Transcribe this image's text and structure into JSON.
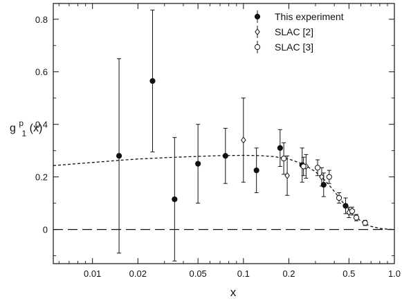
{
  "chart_data": {
    "type": "scatter",
    "xscale": "log",
    "xlim": [
      0.0055,
      1.0
    ],
    "ylim": [
      -0.13,
      0.86
    ],
    "xlabel": "x",
    "ylabel": {
      "base": "g",
      "sup": "p",
      "sub": "1",
      "arg": "(x)"
    },
    "xticks": [
      {
        "v": 0.01,
        "label": "0.01"
      },
      {
        "v": 0.02,
        "label": "0.02"
      },
      {
        "v": 0.05,
        "label": "0.05"
      },
      {
        "v": 0.1,
        "label": "0.1"
      },
      {
        "v": 0.2,
        "label": "0.2"
      },
      {
        "v": 0.5,
        "label": "0.5"
      },
      {
        "v": 1.0,
        "label": "1.0"
      }
    ],
    "yticks": [
      {
        "v": 0,
        "label": "0"
      },
      {
        "v": 0.2,
        "label": "0.2"
      },
      {
        "v": 0.4,
        "label": "0.4"
      },
      {
        "v": 0.6,
        "label": "0.6"
      },
      {
        "v": 0.8,
        "label": "0.8"
      }
    ],
    "grid": false,
    "legend_position": "top-right",
    "series": [
      {
        "name": "This experiment",
        "marker": "filled-circle",
        "points": [
          {
            "x": 0.015,
            "y": 0.28,
            "err": 0.37
          },
          {
            "x": 0.025,
            "y": 0.565,
            "err": 0.27
          },
          {
            "x": 0.035,
            "y": 0.115,
            "err": 0.235
          },
          {
            "x": 0.05,
            "y": 0.25,
            "err": 0.15
          },
          {
            "x": 0.076,
            "y": 0.28,
            "err": 0.105
          },
          {
            "x": 0.122,
            "y": 0.225,
            "err": 0.085
          },
          {
            "x": 0.175,
            "y": 0.31,
            "err": 0.07
          },
          {
            "x": 0.245,
            "y": 0.245,
            "err": 0.065
          },
          {
            "x": 0.34,
            "y": 0.17,
            "err": 0.045
          },
          {
            "x": 0.475,
            "y": 0.09,
            "err": 0.03
          }
        ]
      },
      {
        "name": "SLAC [2]",
        "marker": "open-diamond",
        "points": [
          {
            "x": 0.1,
            "y": 0.34,
            "err": 0.16
          },
          {
            "x": 0.195,
            "y": 0.205,
            "err": 0.075
          },
          {
            "x": 0.26,
            "y": 0.24,
            "err": 0.045
          },
          {
            "x": 0.33,
            "y": 0.2,
            "err": 0.035
          },
          {
            "x": 0.5,
            "y": 0.065,
            "err": 0.02
          }
        ]
      },
      {
        "name": "SLAC [3]",
        "marker": "open-circle",
        "points": [
          {
            "x": 0.185,
            "y": 0.27,
            "err": 0.06
          },
          {
            "x": 0.25,
            "y": 0.24,
            "err": 0.035
          },
          {
            "x": 0.31,
            "y": 0.235,
            "err": 0.03
          },
          {
            "x": 0.37,
            "y": 0.2,
            "err": 0.025
          },
          {
            "x": 0.43,
            "y": 0.12,
            "err": 0.02
          },
          {
            "x": 0.525,
            "y": 0.07,
            "err": 0.015
          },
          {
            "x": 0.56,
            "y": 0.045,
            "err": 0.012
          },
          {
            "x": 0.64,
            "y": 0.025,
            "err": 0.01
          }
        ]
      }
    ],
    "curves": [
      {
        "style": "short-dash",
        "points": [
          [
            0.0055,
            0.243
          ],
          [
            0.01,
            0.255
          ],
          [
            0.015,
            0.263
          ],
          [
            0.02,
            0.268
          ],
          [
            0.03,
            0.273
          ],
          [
            0.05,
            0.278
          ],
          [
            0.07,
            0.281
          ],
          [
            0.1,
            0.282
          ],
          [
            0.13,
            0.281
          ],
          [
            0.16,
            0.277
          ],
          [
            0.2,
            0.268
          ],
          [
            0.25,
            0.248
          ],
          [
            0.3,
            0.22
          ],
          [
            0.35,
            0.185
          ],
          [
            0.4,
            0.145
          ],
          [
            0.45,
            0.107
          ],
          [
            0.5,
            0.075
          ],
          [
            0.55,
            0.05
          ],
          [
            0.6,
            0.032
          ],
          [
            0.65,
            0.02
          ],
          [
            0.7,
            0.012
          ],
          [
            0.8,
            0.004
          ],
          [
            0.9,
            0.001
          ],
          [
            1.0,
            0.0
          ]
        ]
      },
      {
        "style": "long-dash",
        "points": [
          [
            0.0055,
            0.0
          ],
          [
            1.0,
            0.0
          ]
        ]
      }
    ]
  }
}
